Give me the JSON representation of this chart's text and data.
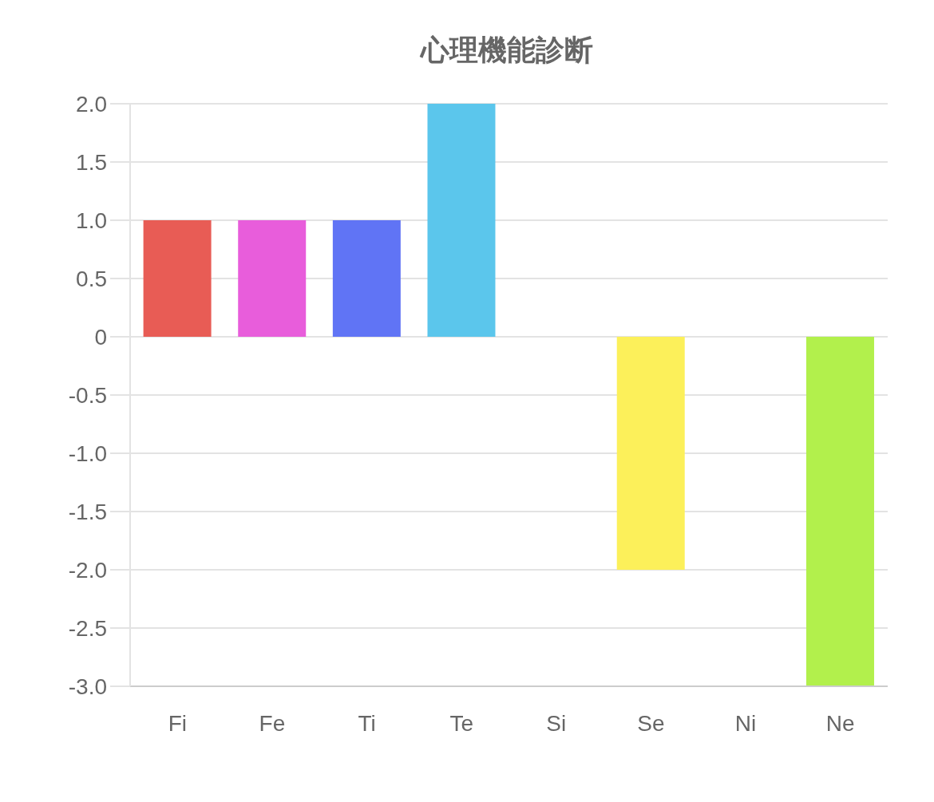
{
  "chart_data": {
    "type": "bar",
    "title": "心理機能診断",
    "categories": [
      "Fi",
      "Fe",
      "Ti",
      "Te",
      "Si",
      "Se",
      "Ni",
      "Ne"
    ],
    "values": [
      1,
      1,
      1,
      2,
      0,
      -2,
      0,
      -3
    ],
    "colors": [
      "#e85c55",
      "#e85ddb",
      "#6074f5",
      "#5bc6ec",
      "#f0a040",
      "#fcf05a",
      "#a070e0",
      "#b2f04c"
    ],
    "ylim": [
      -3,
      2
    ],
    "yticks": [
      {
        "value": 2,
        "label": "2.0"
      },
      {
        "value": 1.5,
        "label": "1.5"
      },
      {
        "value": 1,
        "label": "1.0"
      },
      {
        "value": 0.5,
        "label": "0.5"
      },
      0,
      {
        "value": -0.5,
        "label": "-0.5"
      },
      {
        "value": -1,
        "label": "-1.0"
      },
      {
        "value": -1.5,
        "label": "-1.5"
      },
      {
        "value": -2,
        "label": "-2.0"
      },
      {
        "value": -2.5,
        "label": "-2.5"
      },
      {
        "value": -3,
        "label": "-3.0"
      }
    ],
    "grid": "y"
  }
}
